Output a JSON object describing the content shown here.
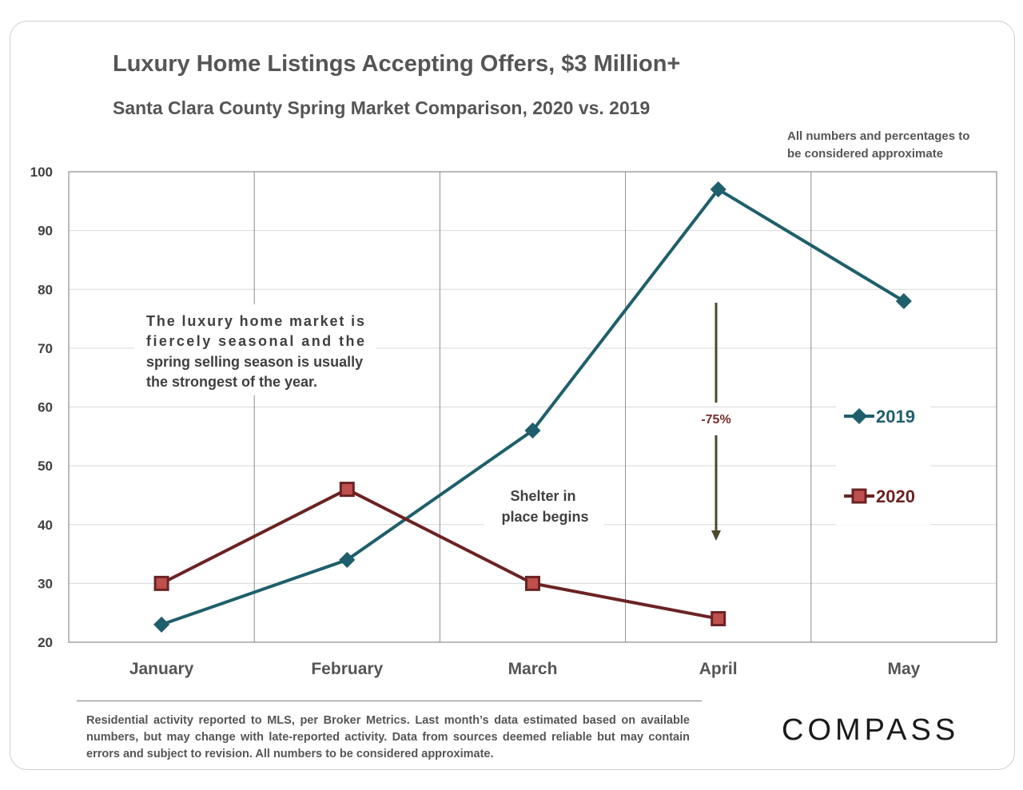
{
  "title": "Luxury Home Listings Accepting Offers, $3 Million+",
  "subtitle": "Santa Clara County Spring Market Comparison, 2020 vs. 2019",
  "note": "All numbers and percentages to be considered approximate",
  "footer": "Residential activity reported to MLS, per Broker Metrics. Last month’s data estimated based on available numbers, but may change with late-reported activity. Data from sources deemed reliable but may contain errors and subject to revision. All numbers to be considered approximate.",
  "logo": "COMPASS",
  "colors": {
    "series2019": "#1f5f6b",
    "series2020": "#6b2323",
    "marker2020": "#c0504d",
    "arrow": "#4a4a2a"
  },
  "chart_data": {
    "type": "line",
    "categories": [
      "January",
      "February",
      "March",
      "April",
      "May"
    ],
    "ylim": [
      20,
      100
    ],
    "yticks": [
      20,
      30,
      40,
      50,
      60,
      70,
      80,
      90,
      100
    ],
    "grid": true,
    "legend_position": "right",
    "series": [
      {
        "name": "2019",
        "marker": "diamond",
        "values": [
          23,
          34,
          56,
          97,
          78
        ]
      },
      {
        "name": "2020",
        "marker": "square",
        "values": [
          30,
          46,
          30,
          24,
          null
        ]
      }
    ],
    "annotations": {
      "seasonal": "The luxury home market is fiercely seasonal and the spring selling season is usually the strongest of the year.",
      "shelter": "Shelter in place begins",
      "change_label": "-75%"
    }
  }
}
